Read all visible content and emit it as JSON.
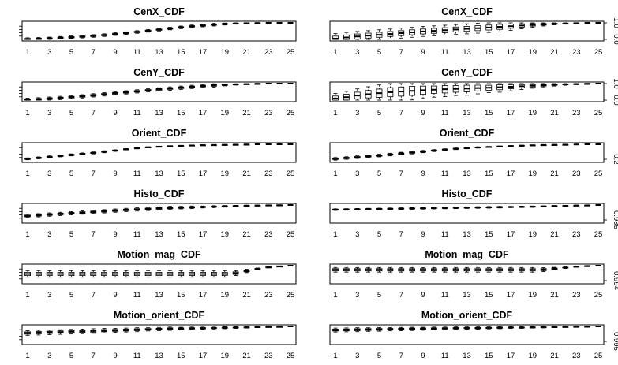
{
  "chart_data": [
    {
      "type": "boxplot",
      "title": "CenX_CDF",
      "categories": [
        "1",
        "2",
        "3",
        "4",
        "5",
        "6",
        "7",
        "8",
        "9",
        "10",
        "11",
        "12",
        "13",
        "14",
        "15",
        "16",
        "17",
        "18",
        "19",
        "20",
        "21",
        "22",
        "23",
        "24",
        "25"
      ],
      "x_tick_labels": [
        "1",
        "3",
        "5",
        "7",
        "9",
        "11",
        "13",
        "15",
        "17",
        "19",
        "21",
        "23",
        "25"
      ],
      "y_tick_labels": [],
      "medians": [
        0.02,
        0.04,
        0.06,
        0.1,
        0.13,
        0.17,
        0.21,
        0.26,
        0.32,
        0.38,
        0.45,
        0.52,
        0.59,
        0.66,
        0.73,
        0.79,
        0.84,
        0.89,
        0.93,
        0.96,
        0.98,
        0.99,
        1.0,
        1.0,
        1.0
      ],
      "spreads": [
        0.08,
        0.08,
        0.08,
        0.08,
        0.08,
        0.08,
        0.08,
        0.08,
        0.08,
        0.08,
        0.08,
        0.08,
        0.08,
        0.08,
        0.08,
        0.08,
        0.08,
        0.08,
        0.06,
        0.04,
        0.02,
        0.01,
        0,
        0,
        0
      ],
      "ylim": [
        0,
        1
      ]
    },
    {
      "type": "boxplot",
      "title": "CenX_CDF",
      "categories": [
        "1",
        "2",
        "3",
        "4",
        "5",
        "6",
        "7",
        "8",
        "9",
        "10",
        "11",
        "12",
        "13",
        "14",
        "15",
        "16",
        "17",
        "18",
        "19",
        "20",
        "21",
        "22",
        "23",
        "24",
        "25"
      ],
      "x_tick_labels": [
        "1",
        "3",
        "5",
        "7",
        "9",
        "11",
        "13",
        "15",
        "17",
        "19",
        "21",
        "23",
        "25"
      ],
      "y_tick_labels": [
        "0.0",
        "1.0"
      ],
      "medians": [
        0.05,
        0.12,
        0.18,
        0.23,
        0.28,
        0.33,
        0.38,
        0.43,
        0.48,
        0.52,
        0.56,
        0.6,
        0.64,
        0.68,
        0.72,
        0.76,
        0.8,
        0.84,
        0.88,
        0.91,
        0.94,
        0.96,
        0.98,
        1.0,
        1.0
      ],
      "spreads": [
        0.3,
        0.3,
        0.3,
        0.3,
        0.3,
        0.3,
        0.3,
        0.3,
        0.3,
        0.3,
        0.3,
        0.3,
        0.3,
        0.3,
        0.3,
        0.3,
        0.25,
        0.2,
        0.15,
        0.1,
        0.06,
        0.04,
        0.02,
        0,
        0
      ],
      "ylim": [
        0,
        1
      ]
    },
    {
      "type": "boxplot",
      "title": "CenY_CDF",
      "categories": [
        "1",
        "2",
        "3",
        "4",
        "5",
        "6",
        "7",
        "8",
        "9",
        "10",
        "11",
        "12",
        "13",
        "14",
        "15",
        "16",
        "17",
        "18",
        "19",
        "20",
        "21",
        "22",
        "23",
        "24",
        "25"
      ],
      "x_tick_labels": [
        "1",
        "3",
        "5",
        "7",
        "9",
        "11",
        "13",
        "15",
        "17",
        "19",
        "21",
        "23",
        "25"
      ],
      "y_tick_labels": [],
      "medians": [
        0.02,
        0.05,
        0.09,
        0.13,
        0.18,
        0.23,
        0.29,
        0.35,
        0.41,
        0.47,
        0.53,
        0.59,
        0.65,
        0.7,
        0.75,
        0.8,
        0.85,
        0.89,
        0.92,
        0.95,
        0.97,
        0.99,
        1.0,
        1.0,
        1.0
      ],
      "spreads": [
        0.1,
        0.1,
        0.1,
        0.1,
        0.1,
        0.1,
        0.1,
        0.1,
        0.1,
        0.1,
        0.1,
        0.1,
        0.1,
        0.1,
        0.1,
        0.1,
        0.1,
        0.1,
        0.06,
        0.04,
        0.02,
        0.01,
        0,
        0,
        0
      ],
      "ylim": [
        0,
        1
      ]
    },
    {
      "type": "boxplot",
      "title": "CenY_CDF",
      "categories": [
        "1",
        "2",
        "3",
        "4",
        "5",
        "6",
        "7",
        "8",
        "9",
        "10",
        "11",
        "12",
        "13",
        "14",
        "15",
        "16",
        "17",
        "18",
        "19",
        "20",
        "21",
        "22",
        "23",
        "24",
        "25"
      ],
      "x_tick_labels": [
        "1",
        "3",
        "5",
        "7",
        "9",
        "11",
        "13",
        "15",
        "17",
        "19",
        "21",
        "23",
        "25"
      ],
      "y_tick_labels": [
        "0.0",
        "1.0"
      ],
      "medians": [
        0.1,
        0.18,
        0.28,
        0.36,
        0.42,
        0.48,
        0.52,
        0.56,
        0.6,
        0.63,
        0.66,
        0.68,
        0.7,
        0.73,
        0.75,
        0.78,
        0.81,
        0.84,
        0.87,
        0.9,
        0.93,
        0.95,
        0.97,
        0.99,
        1.0
      ],
      "spreads": [
        0.3,
        0.35,
        0.4,
        0.45,
        0.5,
        0.55,
        0.55,
        0.55,
        0.5,
        0.45,
        0.45,
        0.4,
        0.4,
        0.35,
        0.3,
        0.3,
        0.25,
        0.2,
        0.15,
        0.1,
        0.08,
        0.05,
        0.03,
        0.01,
        0
      ],
      "ylim": [
        0,
        1
      ]
    },
    {
      "type": "boxplot",
      "title": "Orient_CDF",
      "categories": [
        "1",
        "2",
        "3",
        "4",
        "5",
        "6",
        "7",
        "8",
        "9",
        "10",
        "11",
        "12",
        "13",
        "14",
        "15",
        "16",
        "17",
        "18",
        "19",
        "20",
        "21",
        "22",
        "23",
        "24",
        "25"
      ],
      "x_tick_labels": [
        "1",
        "3",
        "5",
        "7",
        "9",
        "11",
        "13",
        "15",
        "17",
        "19",
        "21",
        "23",
        "25"
      ],
      "y_tick_labels": [],
      "medians": [
        0.12,
        0.18,
        0.24,
        0.3,
        0.36,
        0.42,
        0.48,
        0.55,
        0.62,
        0.7,
        0.76,
        0.82,
        0.86,
        0.89,
        0.91,
        0.93,
        0.95,
        0.96,
        0.97,
        0.98,
        0.99,
        1.0,
        1.0,
        1.0,
        1.0
      ],
      "spreads": [
        0.06,
        0.06,
        0.06,
        0.06,
        0.06,
        0.06,
        0.06,
        0.06,
        0.05,
        0.04,
        0.03,
        0.03,
        0.02,
        0.02,
        0.02,
        0.02,
        0.01,
        0.01,
        0.01,
        0.01,
        0.01,
        0,
        0,
        0,
        0
      ],
      "ylim": [
        0,
        1
      ]
    },
    {
      "type": "boxplot",
      "title": "Orient_CDF",
      "categories": [
        "1",
        "2",
        "3",
        "4",
        "5",
        "6",
        "7",
        "8",
        "9",
        "10",
        "11",
        "12",
        "13",
        "14",
        "15",
        "16",
        "17",
        "18",
        "19",
        "20",
        "21",
        "22",
        "23",
        "24",
        "25"
      ],
      "x_tick_labels": [
        "1",
        "3",
        "5",
        "7",
        "9",
        "11",
        "13",
        "15",
        "17",
        "19",
        "21",
        "23",
        "25"
      ],
      "y_tick_labels": [
        "0.2"
      ],
      "medians": [
        0.12,
        0.17,
        0.22,
        0.27,
        0.32,
        0.38,
        0.44,
        0.5,
        0.56,
        0.62,
        0.68,
        0.73,
        0.77,
        0.81,
        0.84,
        0.87,
        0.9,
        0.92,
        0.94,
        0.96,
        0.97,
        0.98,
        0.99,
        1.0,
        1.0
      ],
      "spreads": [
        0.08,
        0.08,
        0.08,
        0.08,
        0.08,
        0.08,
        0.08,
        0.08,
        0.07,
        0.06,
        0.05,
        0.05,
        0.04,
        0.04,
        0.03,
        0.03,
        0.02,
        0.02,
        0.02,
        0.01,
        0.01,
        0.01,
        0,
        0,
        0
      ],
      "ylim": [
        0,
        1
      ]
    },
    {
      "type": "boxplot",
      "title": "Histo_CDF",
      "categories": [
        "1",
        "2",
        "3",
        "4",
        "5",
        "6",
        "7",
        "8",
        "9",
        "10",
        "11",
        "12",
        "13",
        "14",
        "15",
        "16",
        "17",
        "18",
        "19",
        "20",
        "21",
        "22",
        "23",
        "24",
        "25"
      ],
      "x_tick_labels": [
        "1",
        "3",
        "5",
        "7",
        "9",
        "11",
        "13",
        "15",
        "17",
        "19",
        "21",
        "23",
        "25"
      ],
      "y_tick_labels": [],
      "medians": [
        0.34,
        0.38,
        0.42,
        0.46,
        0.5,
        0.54,
        0.58,
        0.62,
        0.66,
        0.7,
        0.73,
        0.76,
        0.79,
        0.82,
        0.84,
        0.86,
        0.88,
        0.9,
        0.92,
        0.94,
        0.96,
        0.97,
        0.98,
        0.99,
        1.0
      ],
      "spreads": [
        0.1,
        0.1,
        0.1,
        0.1,
        0.1,
        0.1,
        0.1,
        0.1,
        0.1,
        0.1,
        0.1,
        0.1,
        0.1,
        0.1,
        0.08,
        0.08,
        0.06,
        0.06,
        0.05,
        0.04,
        0.03,
        0.02,
        0.02,
        0.01,
        0
      ],
      "ylim": [
        0,
        1
      ]
    },
    {
      "type": "boxplot",
      "title": "Histo_CDF",
      "categories": [
        "1",
        "2",
        "3",
        "4",
        "5",
        "6",
        "7",
        "8",
        "9",
        "10",
        "11",
        "12",
        "13",
        "14",
        "15",
        "16",
        "17",
        "18",
        "19",
        "20",
        "21",
        "22",
        "23",
        "24",
        "25"
      ],
      "x_tick_labels": [
        "1",
        "3",
        "5",
        "7",
        "9",
        "11",
        "13",
        "15",
        "17",
        "19",
        "21",
        "23",
        "25"
      ],
      "y_tick_labels": [
        "0.985"
      ],
      "medians": [
        0.72,
        0.73,
        0.74,
        0.75,
        0.76,
        0.77,
        0.78,
        0.79,
        0.8,
        0.81,
        0.82,
        0.83,
        0.84,
        0.85,
        0.86,
        0.87,
        0.88,
        0.89,
        0.9,
        0.92,
        0.94,
        0.95,
        0.97,
        0.98,
        1.0
      ],
      "spreads": [
        0.05,
        0.05,
        0.05,
        0.05,
        0.05,
        0.05,
        0.05,
        0.05,
        0.05,
        0.05,
        0.05,
        0.05,
        0.05,
        0.05,
        0.05,
        0.05,
        0.04,
        0.04,
        0.04,
        0.03,
        0.03,
        0.02,
        0.02,
        0.01,
        0
      ],
      "ylim": [
        0,
        1
      ]
    },
    {
      "type": "boxplot",
      "title": "Motion_mag_CDF",
      "categories": [
        "1",
        "2",
        "3",
        "4",
        "5",
        "6",
        "7",
        "8",
        "9",
        "10",
        "11",
        "12",
        "13",
        "14",
        "15",
        "16",
        "17",
        "18",
        "19",
        "20",
        "21",
        "22",
        "23",
        "24",
        "25"
      ],
      "x_tick_labels": [
        "1",
        "3",
        "5",
        "7",
        "9",
        "11",
        "13",
        "15",
        "17",
        "19",
        "21",
        "23",
        "25"
      ],
      "y_tick_labels": [],
      "medians": [
        0.5,
        0.5,
        0.5,
        0.5,
        0.5,
        0.5,
        0.5,
        0.5,
        0.5,
        0.5,
        0.5,
        0.5,
        0.5,
        0.5,
        0.5,
        0.5,
        0.5,
        0.5,
        0.5,
        0.55,
        0.68,
        0.8,
        0.9,
        0.96,
        1.0
      ],
      "spreads": [
        0.2,
        0.2,
        0.2,
        0.2,
        0.2,
        0.2,
        0.2,
        0.2,
        0.2,
        0.2,
        0.2,
        0.2,
        0.2,
        0.2,
        0.2,
        0.2,
        0.2,
        0.2,
        0.2,
        0.15,
        0.1,
        0.06,
        0.03,
        0.01,
        0
      ],
      "ylim": [
        0,
        1
      ]
    },
    {
      "type": "boxplot",
      "title": "Motion_mag_CDF",
      "categories": [
        "1",
        "2",
        "3",
        "4",
        "5",
        "6",
        "7",
        "8",
        "9",
        "10",
        "11",
        "12",
        "13",
        "14",
        "15",
        "16",
        "17",
        "18",
        "19",
        "20",
        "21",
        "22",
        "23",
        "24",
        "25"
      ],
      "x_tick_labels": [
        "1",
        "3",
        "5",
        "7",
        "9",
        "11",
        "13",
        "15",
        "17",
        "19",
        "21",
        "23",
        "25"
      ],
      "y_tick_labels": [
        "0.994"
      ],
      "medians": [
        0.75,
        0.75,
        0.75,
        0.75,
        0.75,
        0.75,
        0.75,
        0.75,
        0.75,
        0.75,
        0.75,
        0.75,
        0.75,
        0.75,
        0.75,
        0.75,
        0.75,
        0.75,
        0.75,
        0.76,
        0.82,
        0.88,
        0.94,
        0.98,
        1.0
      ],
      "spreads": [
        0.14,
        0.14,
        0.14,
        0.14,
        0.14,
        0.14,
        0.14,
        0.14,
        0.14,
        0.14,
        0.14,
        0.14,
        0.14,
        0.14,
        0.14,
        0.14,
        0.14,
        0.14,
        0.14,
        0.12,
        0.08,
        0.05,
        0.03,
        0.01,
        0
      ],
      "ylim": [
        0,
        1
      ]
    },
    {
      "type": "boxplot",
      "title": "Motion_orient_CDF",
      "categories": [
        "1",
        "2",
        "3",
        "4",
        "5",
        "6",
        "7",
        "8",
        "9",
        "10",
        "11",
        "12",
        "13",
        "14",
        "15",
        "16",
        "17",
        "18",
        "19",
        "20",
        "21",
        "22",
        "23",
        "24",
        "25"
      ],
      "x_tick_labels": [
        "1",
        "3",
        "5",
        "7",
        "9",
        "11",
        "13",
        "15",
        "17",
        "19",
        "21",
        "23",
        "25"
      ],
      "y_tick_labels": [],
      "medians": [
        0.6,
        0.62,
        0.64,
        0.66,
        0.68,
        0.7,
        0.72,
        0.74,
        0.76,
        0.78,
        0.8,
        0.82,
        0.84,
        0.86,
        0.87,
        0.88,
        0.89,
        0.9,
        0.92,
        0.93,
        0.94,
        0.96,
        0.97,
        0.98,
        1.0
      ],
      "spreads": [
        0.14,
        0.14,
        0.14,
        0.14,
        0.14,
        0.14,
        0.14,
        0.14,
        0.12,
        0.12,
        0.12,
        0.1,
        0.1,
        0.1,
        0.08,
        0.08,
        0.07,
        0.06,
        0.06,
        0.05,
        0.04,
        0.03,
        0.02,
        0.01,
        0
      ],
      "ylim": [
        0,
        1
      ]
    },
    {
      "type": "boxplot",
      "title": "Motion_orient_CDF",
      "categories": [
        "1",
        "2",
        "3",
        "4",
        "5",
        "6",
        "7",
        "8",
        "9",
        "10",
        "11",
        "12",
        "13",
        "14",
        "15",
        "16",
        "17",
        "18",
        "19",
        "20",
        "21",
        "22",
        "23",
        "24",
        "25"
      ],
      "x_tick_labels": [
        "1",
        "3",
        "5",
        "7",
        "9",
        "11",
        "13",
        "15",
        "17",
        "19",
        "21",
        "23",
        "25"
      ],
      "y_tick_labels": [
        "0.995"
      ],
      "medians": [
        0.78,
        0.79,
        0.8,
        0.81,
        0.82,
        0.83,
        0.84,
        0.85,
        0.86,
        0.87,
        0.88,
        0.89,
        0.9,
        0.9,
        0.91,
        0.92,
        0.93,
        0.93,
        0.94,
        0.95,
        0.96,
        0.97,
        0.98,
        0.99,
        1.0
      ],
      "spreads": [
        0.12,
        0.12,
        0.12,
        0.11,
        0.11,
        0.1,
        0.1,
        0.1,
        0.09,
        0.09,
        0.08,
        0.08,
        0.07,
        0.07,
        0.06,
        0.06,
        0.05,
        0.05,
        0.04,
        0.04,
        0.03,
        0.02,
        0.02,
        0.01,
        0
      ],
      "ylim": [
        0,
        1
      ]
    }
  ]
}
